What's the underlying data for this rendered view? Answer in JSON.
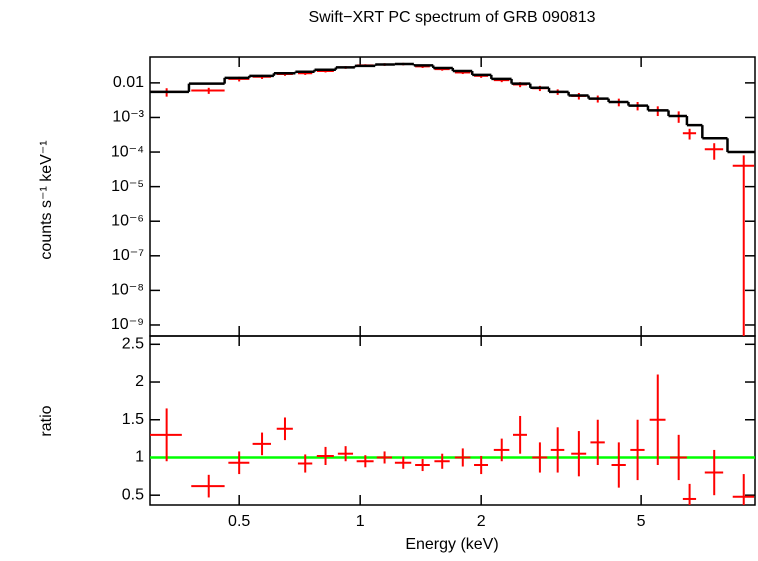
{
  "chart_data": [
    {
      "type": "errorbar",
      "title": "Swift−XRT PC spectrum of GRB 090813",
      "ylabel": "counts s⁻¹ keV⁻¹",
      "log_x": true,
      "log_y": true,
      "xlim": [
        0.3,
        9.6
      ],
      "ylim": [
        4.8e-10,
        0.056
      ],
      "yticks": [
        0.01,
        {
          "value": 0.001,
          "label": "10⁻³"
        },
        {
          "value": 0.0001,
          "label": "10⁻⁴"
        },
        {
          "value": 1e-05,
          "label": "10⁻⁵"
        },
        {
          "value": 1e-06,
          "label": "10⁻⁶"
        },
        {
          "value": 1e-07,
          "label": "10⁻⁷"
        },
        {
          "value": 1e-08,
          "label": "10⁻⁸"
        },
        {
          "value": 1e-09,
          "label": "10⁻⁹"
        }
      ],
      "series": [
        {
          "kind": "points",
          "color": "#ff0000",
          "x": [
            0.33,
            0.42,
            0.5,
            0.57,
            0.65,
            0.73,
            0.82,
            0.92,
            1.03,
            1.15,
            1.28,
            1.43,
            1.6,
            1.8,
            2.0,
            2.25,
            2.5,
            2.8,
            3.1,
            3.5,
            3.9,
            4.4,
            4.9,
            5.5,
            6.2,
            6.6,
            7.6,
            9.0
          ],
          "xerr": [
            0.03,
            0.04,
            0.03,
            0.03,
            0.03,
            0.03,
            0.04,
            0.04,
            0.05,
            0.05,
            0.06,
            0.06,
            0.07,
            0.08,
            0.08,
            0.1,
            0.1,
            0.12,
            0.12,
            0.15,
            0.16,
            0.18,
            0.2,
            0.25,
            0.3,
            0.25,
            0.4,
            0.55
          ],
          "values": [
            0.0055,
            0.006,
            0.013,
            0.015,
            0.018,
            0.019,
            0.022,
            0.028,
            0.032,
            0.034,
            0.035,
            0.03,
            0.025,
            0.02,
            0.016,
            0.012,
            0.009,
            0.007,
            0.0055,
            0.0042,
            0.0035,
            0.0028,
            0.0022,
            0.0016,
            0.0011,
            0.00035,
            0.00012,
            4e-05
          ],
          "yerr": [
            0.0015,
            0.0012,
            0.002,
            0.002,
            0.002,
            0.002,
            0.002,
            0.0025,
            0.0025,
            0.003,
            0.003,
            0.003,
            0.0025,
            0.002,
            0.002,
            0.0015,
            0.0015,
            0.0012,
            0.001,
            0.0009,
            0.0008,
            0.0007,
            0.0006,
            0.0005,
            0.0004,
            0.00012,
            6e-05,
            4e-05
          ]
        },
        {
          "kind": "step",
          "color": "#000000",
          "bins": [
            0.3,
            0.375,
            0.46,
            0.53,
            0.61,
            0.69,
            0.77,
            0.87,
            0.97,
            1.09,
            1.22,
            1.36,
            1.52,
            1.7,
            1.9,
            2.12,
            2.38,
            2.65,
            2.95,
            3.3,
            3.7,
            4.15,
            4.65,
            5.2,
            5.85,
            6.5,
            7.1,
            8.2,
            9.6
          ],
          "values": [
            0.0055,
            0.0095,
            0.014,
            0.016,
            0.019,
            0.021,
            0.024,
            0.028,
            0.031,
            0.034,
            0.035,
            0.032,
            0.027,
            0.022,
            0.017,
            0.013,
            0.0095,
            0.0072,
            0.0055,
            0.0043,
            0.0035,
            0.0028,
            0.0022,
            0.0016,
            0.0011,
            0.0006,
            0.00025,
            0.0001
          ]
        }
      ]
    },
    {
      "type": "errorbar",
      "xlabel": "Energy (keV)",
      "ylabel": "ratio",
      "log_x": true,
      "xlim": [
        0.3,
        9.6
      ],
      "ylim": [
        0.37,
        2.61
      ],
      "xticks": [
        0.5,
        1,
        2,
        5
      ],
      "yticks": [
        0.5,
        1,
        1.5,
        2,
        2.5
      ],
      "hline": 1,
      "hline_color": "#00ff00",
      "series": [
        {
          "kind": "points",
          "color": "#ff0000",
          "x": [
            0.33,
            0.42,
            0.5,
            0.57,
            0.65,
            0.73,
            0.82,
            0.92,
            1.03,
            1.15,
            1.28,
            1.43,
            1.6,
            1.8,
            2.0,
            2.25,
            2.5,
            2.8,
            3.1,
            3.5,
            3.9,
            4.4,
            4.9,
            5.5,
            6.2,
            6.6,
            7.6,
            9.0
          ],
          "xerr": [
            0.03,
            0.04,
            0.03,
            0.03,
            0.03,
            0.03,
            0.04,
            0.04,
            0.05,
            0.05,
            0.06,
            0.06,
            0.07,
            0.08,
            0.08,
            0.1,
            0.1,
            0.12,
            0.12,
            0.15,
            0.16,
            0.18,
            0.2,
            0.25,
            0.3,
            0.25,
            0.4,
            0.55
          ],
          "values": [
            1.3,
            0.62,
            0.93,
            1.18,
            1.38,
            0.92,
            1.02,
            1.05,
            0.95,
            1.0,
            0.93,
            0.9,
            0.95,
            1.0,
            0.9,
            1.1,
            1.3,
            1.0,
            1.1,
            1.05,
            1.2,
            0.9,
            1.1,
            1.5,
            1.0,
            0.45,
            0.8,
            0.48
          ],
          "yerr": [
            0.35,
            0.15,
            0.15,
            0.15,
            0.15,
            0.12,
            0.12,
            0.1,
            0.08,
            0.08,
            0.08,
            0.08,
            0.1,
            0.12,
            0.12,
            0.15,
            0.25,
            0.2,
            0.3,
            0.3,
            0.3,
            0.3,
            0.4,
            0.6,
            0.3,
            0.2,
            0.3,
            0.3
          ]
        }
      ]
    }
  ]
}
